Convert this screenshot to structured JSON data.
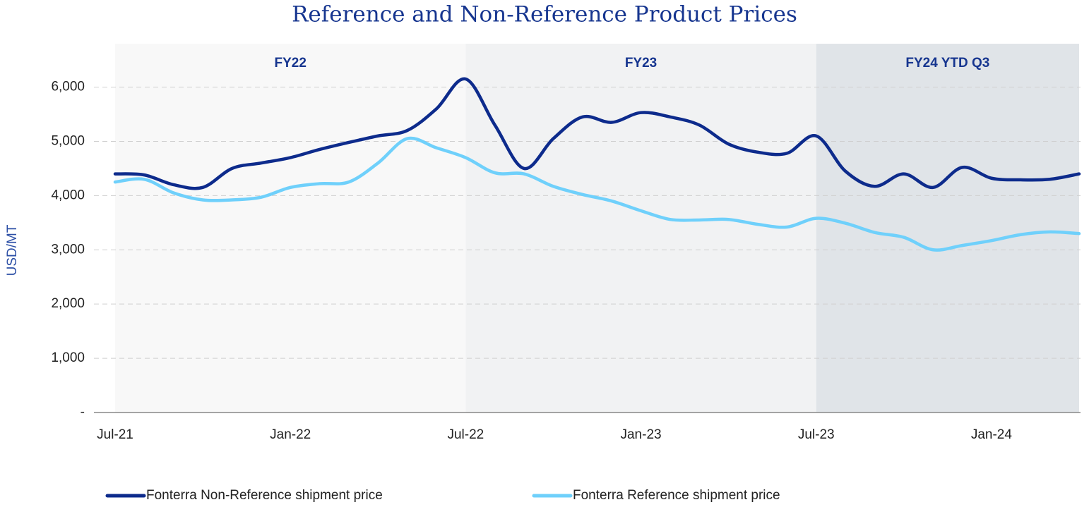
{
  "chart_data": {
    "type": "line",
    "title": "Reference and Non-Reference Product Prices",
    "y_label": "USD/MT",
    "categories": [
      "Jul-21",
      null,
      null,
      null,
      null,
      null,
      "Jan-22",
      null,
      null,
      null,
      null,
      null,
      "Jul-22",
      null,
      null,
      null,
      null,
      null,
      "Jan-23",
      null,
      null,
      null,
      null,
      null,
      "Jul-23",
      null,
      null,
      null,
      null,
      null,
      "Jan-24",
      null,
      null,
      null
    ],
    "series": [
      {
        "name": "Fonterra Non-Reference shipment price",
        "color": "#0d2b8c",
        "values": [
          4400,
          4380,
          4200,
          4150,
          4500,
          4600,
          4700,
          4850,
          4980,
          5100,
          5200,
          5600,
          6150,
          5300,
          4500,
          5050,
          5450,
          5350,
          5530,
          5450,
          5300,
          4950,
          4800,
          4780,
          5100,
          4450,
          4170,
          4400,
          4150,
          4520,
          4320,
          4290,
          4300,
          4400
        ]
      },
      {
        "name": "Fonterra Reference shipment price",
        "color": "#6fd0fb",
        "values": [
          4250,
          4300,
          4050,
          3920,
          3920,
          3970,
          4150,
          4220,
          4250,
          4600,
          5050,
          4880,
          4700,
          4420,
          4400,
          4170,
          4020,
          3900,
          3720,
          3560,
          3550,
          3560,
          3470,
          3420,
          3580,
          3490,
          3320,
          3230,
          3000,
          3080,
          3170,
          3280,
          3330,
          3300
        ]
      }
    ],
    "periods": [
      {
        "label": "FY22",
        "color": "#f8f8f8"
      },
      {
        "label": "FY23",
        "color": "#f1f2f3"
      },
      {
        "label": "FY24 YTD Q3",
        "color": "#e0e4e8"
      }
    ],
    "ylim": [
      0,
      6800
    ],
    "yticks": [
      {
        "value": 0,
        "label": "-"
      },
      {
        "value": 1000,
        "label": "1,000"
      },
      {
        "value": 2000,
        "label": "2,000"
      },
      {
        "value": 3000,
        "label": "3,000"
      },
      {
        "value": 4000,
        "label": "4,000"
      },
      {
        "value": 5000,
        "label": "5,000"
      },
      {
        "value": 6000,
        "label": "6,000"
      }
    ],
    "grid": true,
    "legend": "bottom"
  }
}
